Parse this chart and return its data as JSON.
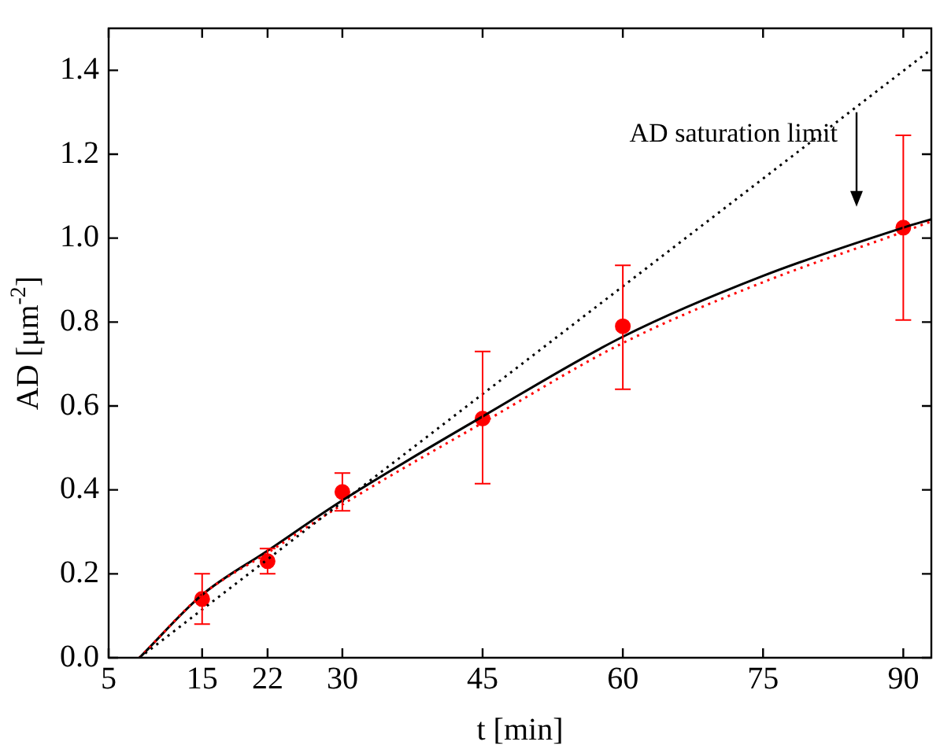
{
  "chart_data": {
    "type": "scatter",
    "xlabel": "t [min]",
    "ylabel": "AD [μm$^{-2}$]",
    "xlim": [
      5,
      93
    ],
    "xticks": [
      5,
      15,
      22,
      30,
      45,
      60,
      75,
      90
    ],
    "ylim": [
      0,
      1.5
    ],
    "yticks": [
      {
        "value": 0,
        "label": "0.0"
      },
      {
        "value": 0.2,
        "label": "0.2"
      },
      {
        "value": 0.4,
        "label": "0.4"
      },
      {
        "value": 0.6,
        "label": "0.6"
      },
      {
        "value": 0.8,
        "label": "0.8"
      },
      {
        "value": 1.0,
        "label": "1.0"
      },
      {
        "value": 1.2,
        "label": "1.2"
      },
      {
        "value": 1.4,
        "label": "1.4"
      }
    ],
    "grid": false,
    "legend": false,
    "annotations": [
      {
        "text": "AD saturation limit",
        "x": 85,
        "y": 1.3
      }
    ],
    "series": [
      {
        "type": "line",
        "color": "#000000",
        "line_style": "dotted",
        "marker": "none",
        "x": [
          8.3,
          93
        ],
        "values": [
          0,
          1.45
        ]
      },
      {
        "type": "line",
        "color": "#ff0000",
        "line_style": "dotted",
        "marker": "none",
        "x": [
          8.3,
          15,
          22,
          30,
          45,
          60,
          75,
          90,
          93
        ],
        "values": [
          0,
          0.15,
          0.25,
          0.365,
          0.56,
          0.75,
          0.895,
          1.015,
          1.04
        ]
      },
      {
        "type": "line",
        "color": "#000000",
        "line_style": "solid",
        "marker": "none",
        "x": [
          8.3,
          15,
          22,
          30,
          45,
          60,
          75,
          90,
          93
        ],
        "values": [
          0,
          0.15,
          0.255,
          0.375,
          0.575,
          0.765,
          0.91,
          1.025,
          1.045
        ]
      },
      {
        "type": "scatter",
        "color": "#ff0000",
        "marker": "circle",
        "x": [
          15,
          22,
          30,
          45,
          60,
          90
        ],
        "values": [
          0.14,
          0.23,
          0.395,
          0.57,
          0.79,
          1.025
        ],
        "errors": [
          [
            0.08,
            0.2
          ],
          [
            0.2,
            0.26
          ],
          [
            0.35,
            0.44
          ],
          [
            0.415,
            0.73
          ],
          [
            0.64,
            0.935
          ],
          [
            0.805,
            1.245
          ]
        ]
      }
    ]
  }
}
